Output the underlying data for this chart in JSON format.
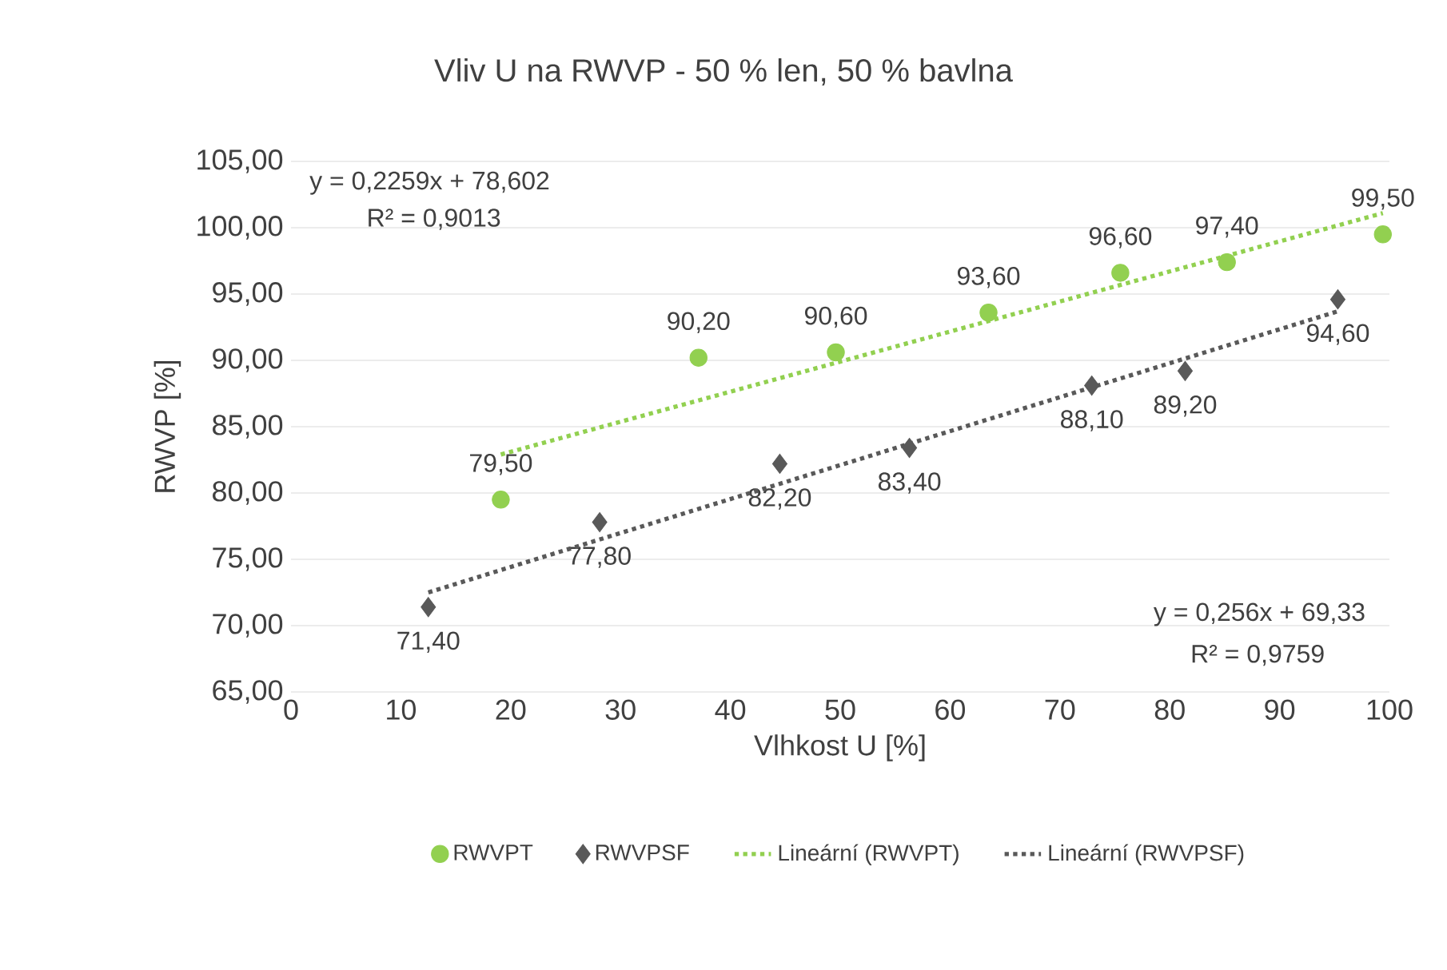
{
  "chart_data": {
    "type": "scatter",
    "title": "Vliv U na RWVP - 50 % len, 50 % bavlna",
    "xlabel": "Vlhkost U [%]",
    "ylabel": "RWVP [%]",
    "xlim": [
      0,
      100
    ],
    "ylim": [
      65,
      105
    ],
    "xticks": [
      0,
      10,
      20,
      30,
      40,
      50,
      60,
      70,
      80,
      90,
      100
    ],
    "yticks": [
      {
        "value": 65,
        "label": "65,00"
      },
      {
        "value": 70,
        "label": "70,00"
      },
      {
        "value": 75,
        "label": "75,00"
      },
      {
        "value": 80,
        "label": "80,00"
      },
      {
        "value": 85,
        "label": "85,00"
      },
      {
        "value": 90,
        "label": "90,00"
      },
      {
        "value": 95,
        "label": "95,00"
      },
      {
        "value": 100,
        "label": "100,00"
      },
      {
        "value": 105,
        "label": "105,00"
      }
    ],
    "grid": "y",
    "legend": "bottom",
    "annotations": [
      "y = 0,2259x + 78,602",
      "R² = 0,9013",
      "y = 0,256x + 69,33",
      "R² = 0,9759"
    ],
    "series": [
      {
        "name": "RWVPT",
        "marker": "circle",
        "color": "#92d050",
        "x": [
          19.1,
          37.1,
          49.6,
          63.5,
          75.5,
          85.2,
          99.4
        ],
        "values": [
          79.5,
          90.2,
          90.6,
          93.6,
          96.6,
          97.4,
          99.5
        ],
        "value_labels": [
          "79,50",
          "90,20",
          "90,60",
          "93,60",
          "96,60",
          "97,40",
          "99,50"
        ]
      },
      {
        "name": "RWVPSF",
        "marker": "diamond",
        "color": "#595959",
        "x": [
          12.5,
          28.1,
          44.5,
          56.3,
          72.9,
          81.4,
          95.3
        ],
        "values": [
          71.4,
          77.8,
          82.2,
          83.4,
          88.1,
          89.2,
          94.6
        ],
        "value_labels": [
          "71,40",
          "77,80",
          "82,20",
          "83,40",
          "88,10",
          "89,20",
          "94,60"
        ]
      },
      {
        "name": "Lineární (RWVPT)",
        "type": "line",
        "marker": "none",
        "line_style": "dotted",
        "color": "#92d050",
        "x": [
          19.1,
          99.4
        ],
        "values": [
          82.9,
          101.1
        ]
      },
      {
        "name": "Lineární (RWVPSF)",
        "type": "line",
        "marker": "none",
        "line_style": "dotted",
        "color": "#595959",
        "x": [
          12.5,
          95.3
        ],
        "values": [
          72.5,
          93.7
        ]
      }
    ]
  }
}
